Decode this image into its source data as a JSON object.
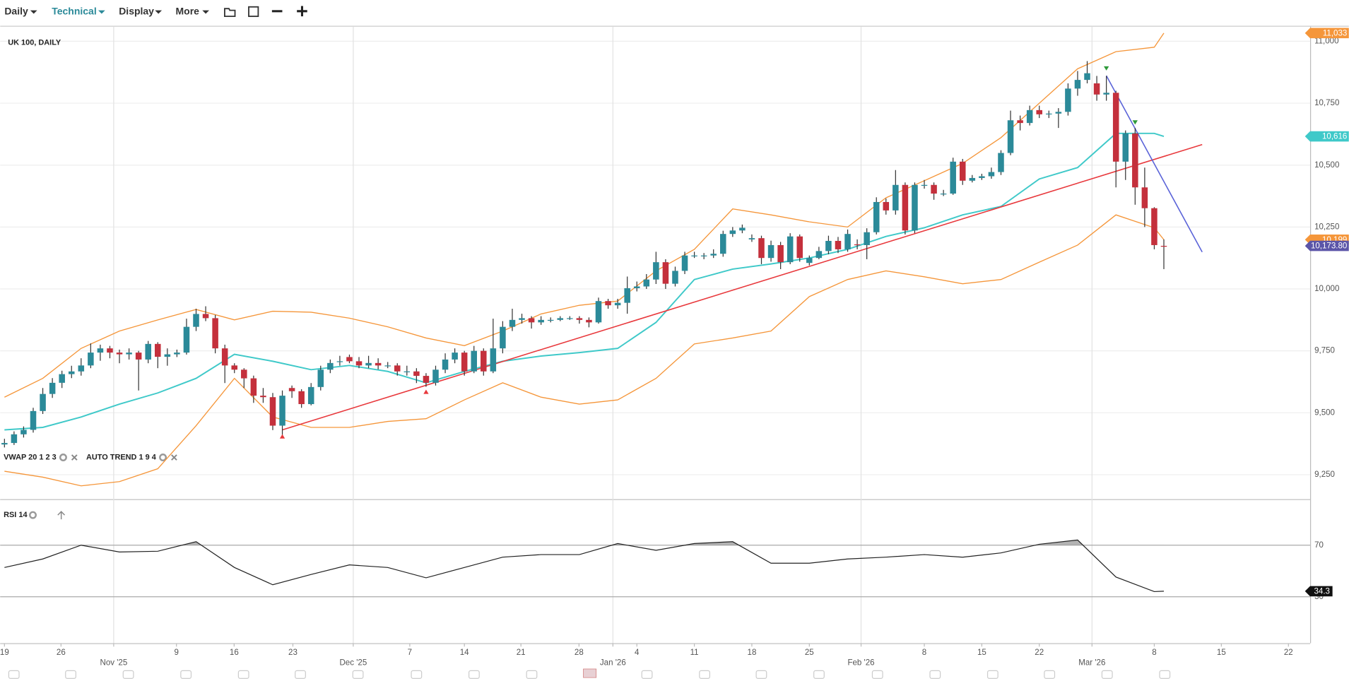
{
  "toolbar": {
    "menus": [
      "Daily",
      "Technical",
      "Display",
      "More"
    ]
  },
  "chart_data": {
    "type": "candlestick",
    "title": "UK 100, DAILY",
    "indicators": [
      "VWAP 20 1 2 3",
      "AUTO TREND 1 9 4"
    ],
    "up_color": "#2b8a99",
    "down_color": "#c4303c",
    "ohlc": [
      [
        9372,
        9395,
        9360,
        9378
      ],
      [
        9378,
        9425,
        9370,
        9413
      ],
      [
        9413,
        9445,
        9400,
        9431
      ],
      [
        9431,
        9520,
        9420,
        9507
      ],
      [
        9507,
        9600,
        9495,
        9576
      ],
      [
        9576,
        9640,
        9560,
        9621
      ],
      [
        9621,
        9670,
        9600,
        9656
      ],
      [
        9656,
        9690,
        9640,
        9667
      ],
      [
        9667,
        9720,
        9650,
        9691
      ],
      [
        9691,
        9780,
        9680,
        9743
      ],
      [
        9743,
        9775,
        9710,
        9760
      ],
      [
        9760,
        9770,
        9720,
        9743
      ],
      [
        9743,
        9755,
        9700,
        9736
      ],
      [
        9736,
        9760,
        9715,
        9743
      ],
      [
        9743,
        9750,
        9590,
        9715
      ],
      [
        9715,
        9790,
        9700,
        9778
      ],
      [
        9778,
        9785,
        9680,
        9726
      ],
      [
        9726,
        9760,
        9690,
        9736
      ],
      [
        9736,
        9755,
        9725,
        9743
      ],
      [
        9743,
        9880,
        9735,
        9847
      ],
      [
        9847,
        9920,
        9830,
        9899
      ],
      [
        9899,
        9930,
        9870,
        9882
      ],
      [
        9882,
        9895,
        9740,
        9760
      ],
      [
        9760,
        9775,
        9620,
        9691
      ],
      [
        9691,
        9700,
        9660,
        9674
      ],
      [
        9674,
        9680,
        9600,
        9639
      ],
      [
        9639,
        9650,
        9540,
        9569
      ],
      [
        9569,
        9600,
        9540,
        9563
      ],
      [
        9563,
        9580,
        9430,
        9448
      ],
      [
        9448,
        9590,
        9410,
        9569
      ],
      [
        9600,
        9610,
        9560,
        9587
      ],
      [
        9587,
        9595,
        9520,
        9535
      ],
      [
        9535,
        9620,
        9530,
        9604
      ],
      [
        9604,
        9690,
        9590,
        9674
      ],
      [
        9674,
        9715,
        9660,
        9701
      ],
      [
        9706,
        9730,
        9690,
        9708
      ],
      [
        9725,
        9735,
        9700,
        9708
      ],
      [
        9708,
        9725,
        9680,
        9691
      ],
      [
        9691,
        9730,
        9680,
        9701
      ],
      [
        9701,
        9720,
        9675,
        9691
      ],
      [
        9691,
        9705,
        9680,
        9691
      ],
      [
        9691,
        9700,
        9650,
        9667
      ],
      [
        9667,
        9690,
        9650,
        9667
      ],
      [
        9667,
        9680,
        9620,
        9649
      ],
      [
        9649,
        9660,
        9605,
        9621
      ],
      [
        9621,
        9690,
        9610,
        9674
      ],
      [
        9674,
        9740,
        9660,
        9715
      ],
      [
        9715,
        9760,
        9700,
        9743
      ],
      [
        9743,
        9750,
        9650,
        9667
      ],
      [
        9667,
        9770,
        9660,
        9750
      ],
      [
        9750,
        9760,
        9650,
        9667
      ],
      [
        9667,
        9880,
        9660,
        9760
      ],
      [
        9760,
        9870,
        9740,
        9847
      ],
      [
        9847,
        9920,
        9830,
        9875
      ],
      [
        9875,
        9900,
        9860,
        9882
      ],
      [
        9882,
        9890,
        9840,
        9865
      ],
      [
        9865,
        9890,
        9855,
        9875
      ],
      [
        9875,
        9885,
        9865,
        9875
      ],
      [
        9875,
        9890,
        9870,
        9882
      ],
      [
        9882,
        9890,
        9875,
        9882
      ],
      [
        9882,
        9890,
        9860,
        9875
      ],
      [
        9875,
        9885,
        9845,
        9865
      ],
      [
        9865,
        9965,
        9860,
        9951
      ],
      [
        9951,
        9960,
        9920,
        9934
      ],
      [
        9934,
        9960,
        9920,
        9944
      ],
      [
        9944,
        10050,
        9900,
        10003
      ],
      [
        10003,
        10030,
        9990,
        10010
      ],
      [
        10010,
        10060,
        10000,
        10038
      ],
      [
        10038,
        10150,
        10020,
        10108
      ],
      [
        10108,
        10120,
        10000,
        10021
      ],
      [
        10021,
        10090,
        10010,
        10073
      ],
      [
        10073,
        10150,
        10060,
        10135
      ],
      [
        10135,
        10150,
        10125,
        10135
      ],
      [
        10135,
        10145,
        10120,
        10135
      ],
      [
        10135,
        10160,
        10125,
        10142
      ],
      [
        10142,
        10235,
        10130,
        10222
      ],
      [
        10222,
        10250,
        10210,
        10236
      ],
      [
        10236,
        10260,
        10225,
        10247
      ],
      [
        10200,
        10220,
        10190,
        10205
      ],
      [
        10205,
        10215,
        10100,
        10125
      ],
      [
        10125,
        10195,
        10110,
        10177
      ],
      [
        10177,
        10190,
        10080,
        10108
      ],
      [
        10108,
        10225,
        10100,
        10212
      ],
      [
        10212,
        10220,
        10110,
        10125
      ],
      [
        10105,
        10135,
        10095,
        10125
      ],
      [
        10125,
        10170,
        10120,
        10153
      ],
      [
        10153,
        10215,
        10140,
        10194
      ],
      [
        10194,
        10210,
        10145,
        10160
      ],
      [
        10160,
        10240,
        10150,
        10222
      ],
      [
        10180,
        10200,
        10160,
        10177
      ],
      [
        10177,
        10245,
        10120,
        10229
      ],
      [
        10229,
        10370,
        10220,
        10351
      ],
      [
        10351,
        10365,
        10300,
        10317
      ],
      [
        10317,
        10480,
        10300,
        10420
      ],
      [
        10420,
        10430,
        10220,
        10236
      ],
      [
        10236,
        10430,
        10225,
        10420
      ],
      [
        10420,
        10440,
        10405,
        10420
      ],
      [
        10420,
        10430,
        10360,
        10385
      ],
      [
        10385,
        10400,
        10375,
        10385
      ],
      [
        10385,
        10530,
        10380,
        10514
      ],
      [
        10514,
        10525,
        10420,
        10437
      ],
      [
        10437,
        10460,
        10430,
        10448
      ],
      [
        10448,
        10465,
        10440,
        10455
      ],
      [
        10455,
        10490,
        10445,
        10472
      ],
      [
        10472,
        10560,
        10460,
        10549
      ],
      [
        10549,
        10720,
        10540,
        10681
      ],
      [
        10681,
        10700,
        10640,
        10670
      ],
      [
        10670,
        10740,
        10660,
        10722
      ],
      [
        10722,
        10740,
        10690,
        10705
      ],
      [
        10705,
        10720,
        10690,
        10708
      ],
      [
        10708,
        10730,
        10650,
        10715
      ],
      [
        10715,
        10830,
        10700,
        10809
      ],
      [
        10809,
        10880,
        10780,
        10844
      ],
      [
        10844,
        10920,
        10830,
        10871
      ],
      [
        10830,
        10860,
        10760,
        10785
      ],
      [
        10785,
        10860,
        10760,
        10792
      ],
      [
        10792,
        10800,
        10410,
        10514
      ],
      [
        10514,
        10640,
        10440,
        10628
      ],
      [
        10628,
        10650,
        10340,
        10410
      ],
      [
        10410,
        10490,
        10250,
        10326
      ],
      [
        10326,
        10330,
        10160,
        10177
      ],
      [
        10174,
        10200,
        10080,
        10173.8
      ]
    ],
    "overlays": [
      {
        "color": "#f5963a",
        "x": [
          0,
          4,
          8,
          12,
          16,
          20,
          24,
          28,
          32,
          36,
          40,
          44,
          48,
          52,
          56,
          60,
          64,
          68,
          72,
          76,
          80,
          84,
          88,
          92,
          96,
          100,
          104,
          108,
          112,
          116,
          120,
          121
        ],
        "values": [
          9563,
          9639,
          9760,
          9830,
          9875,
          9917,
          9875,
          9910,
          9906,
          9882,
          9847,
          9802,
          9771,
          9830,
          9899,
          9934,
          9951,
          10073,
          10160,
          10323,
          10299,
          10271,
          10250,
          10368,
          10437,
          10507,
          10611,
          10750,
          10889,
          10958,
          10976,
          11033
        ]
      },
      {
        "color": "#3fc9c9",
        "x": [
          0,
          4,
          8,
          12,
          16,
          20,
          24,
          28,
          32,
          36,
          40,
          44,
          48,
          52,
          56,
          60,
          64,
          68,
          72,
          76,
          80,
          84,
          88,
          92,
          96,
          100,
          104,
          108,
          112,
          116,
          120,
          121
        ],
        "values": [
          9431,
          9441,
          9483,
          9535,
          9580,
          9639,
          9736,
          9708,
          9674,
          9691,
          9667,
          9621,
          9667,
          9708,
          9729,
          9743,
          9760,
          9865,
          10038,
          10080,
          10101,
          10125,
          10160,
          10212,
          10247,
          10299,
          10333,
          10444,
          10490,
          10628,
          10628,
          10616
        ]
      },
      {
        "color": "#f5963a",
        "x": [
          0,
          4,
          8,
          12,
          16,
          20,
          24,
          28,
          32,
          36,
          40,
          44,
          48,
          52,
          56,
          60,
          64,
          68,
          72,
          76,
          80,
          84,
          88,
          92,
          96,
          100,
          104,
          108,
          112,
          116,
          120,
          121
        ],
        "values": [
          9264,
          9240,
          9205,
          9222,
          9274,
          9448,
          9639,
          9483,
          9441,
          9441,
          9465,
          9476,
          9552,
          9621,
          9563,
          9535,
          9552,
          9639,
          9778,
          9802,
          9830,
          9969,
          10038,
          10073,
          10049,
          10021,
          10038,
          10108,
          10177,
          10299,
          10247,
          10199
        ]
      }
    ],
    "trend_lines": [
      {
        "color": "#e8383c",
        "x": [
          29,
          125
        ],
        "values": [
          9431,
          10583
        ]
      },
      {
        "color": "#5a63d8",
        "x": [
          115,
          125
        ],
        "values": [
          10861,
          10149
        ]
      }
    ],
    "markers": [
      {
        "x": 29,
        "value": 9403,
        "shape": "up",
        "color": "#e8383c"
      },
      {
        "x": 44,
        "value": 9583,
        "shape": "up",
        "color": "#e8383c"
      },
      {
        "x": 115,
        "value": 10892,
        "shape": "down",
        "color": "#2e9a3a"
      },
      {
        "x": 118,
        "value": 10674,
        "shape": "down",
        "color": "#2e9a3a"
      }
    ],
    "price_tags": [
      {
        "value": 11033,
        "label": "11,033",
        "color": "#f5963a"
      },
      {
        "value": 10616,
        "label": "10,616",
        "color": "#3fc9c9"
      },
      {
        "value": 10199,
        "label": "10,199",
        "color": "#f5963a"
      },
      {
        "value": 10173.8,
        "label": "10,173.80",
        "color": "#5b55a8"
      }
    ],
    "ylim": [
      9153,
      11059
    ],
    "yticks": [
      {
        "value": 9250,
        "label": "9,250"
      },
      {
        "value": 9500,
        "label": "9,500"
      },
      {
        "value": 9750,
        "label": "9,750"
      },
      {
        "value": 10000,
        "label": "10,000"
      },
      {
        "value": 10250,
        "label": "10,250"
      },
      {
        "value": 10500,
        "label": "10,500"
      },
      {
        "value": 10750,
        "label": "10,750"
      },
      {
        "value": 11000,
        "label": "11,000"
      }
    ],
    "xticks": [
      {
        "value": 0,
        "label": "19"
      },
      {
        "value": 5.9,
        "label": "26"
      },
      {
        "value": 11.4,
        "label": "Nov '25"
      },
      {
        "value": 17.95,
        "label": "9"
      },
      {
        "value": 23.97,
        "label": "16"
      },
      {
        "value": 30.1,
        "label": "23"
      },
      {
        "value": 36.4,
        "label": "Dec '25"
      },
      {
        "value": 42.3,
        "label": "7"
      },
      {
        "value": 48,
        "label": "14"
      },
      {
        "value": 53.9,
        "label": "21"
      },
      {
        "value": 59.96,
        "label": "28"
      },
      {
        "value": 63.5,
        "label": "Jan '26"
      },
      {
        "value": 66,
        "label": "4"
      },
      {
        "value": 72,
        "label": "11"
      },
      {
        "value": 78,
        "label": "18"
      },
      {
        "value": 84,
        "label": "25"
      },
      {
        "value": 89.4,
        "label": "Feb '26"
      },
      {
        "value": 96,
        "label": "8"
      },
      {
        "value": 102,
        "label": "15"
      },
      {
        "value": 108,
        "label": "22"
      },
      {
        "value": 113.5,
        "label": "Mar '26"
      },
      {
        "value": 120,
        "label": "8"
      },
      {
        "value": 127,
        "label": "15"
      },
      {
        "value": 134,
        "label": "22"
      }
    ],
    "grid": true,
    "rsi": {
      "label": "RSI 14",
      "color": "#222",
      "shade": "#999",
      "x": [
        0,
        4,
        8,
        12,
        16,
        20,
        24,
        28,
        32,
        36,
        40,
        44,
        48,
        52,
        56,
        60,
        64,
        68,
        72,
        76,
        80,
        84,
        88,
        92,
        96,
        100,
        104,
        108,
        112,
        116,
        120,
        121
      ],
      "values": [
        52.7,
        59.3,
        70,
        64.7,
        65.3,
        72.7,
        52.7,
        39.3,
        47.3,
        54.7,
        52.7,
        44.7,
        52.7,
        60.7,
        62.7,
        62.7,
        71.3,
        66,
        71.3,
        72.7,
        56,
        56,
        59.3,
        60.7,
        62.7,
        60.7,
        64,
        70.7,
        74,
        45.3,
        34,
        34.3
      ],
      "ylim": [
        -6,
        104.7
      ],
      "yticks": [
        30,
        70
      ],
      "tag": {
        "value": 34.3,
        "label": "34.3"
      }
    }
  }
}
